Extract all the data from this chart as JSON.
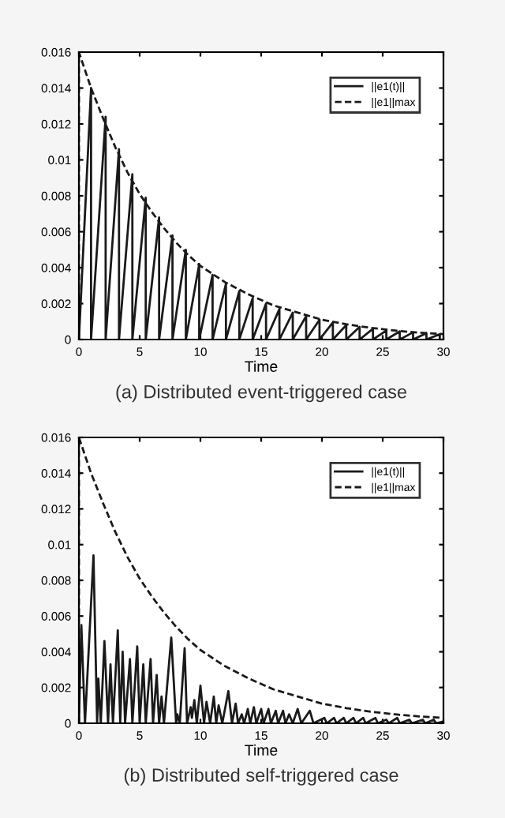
{
  "chart_data": [
    {
      "type": "line",
      "title": "(a) Distributed event-triggered case",
      "xlabel": "Time",
      "xlim": [
        0,
        30
      ],
      "ylim": [
        0,
        0.016
      ],
      "xticks": [
        0,
        5,
        10,
        15,
        20,
        25,
        30
      ],
      "yticks": [
        0,
        0.002,
        0.004,
        0.006,
        0.008,
        0.01,
        0.012,
        0.014,
        0.016
      ],
      "legend": "top right",
      "grid": false,
      "marker": "none",
      "series": [
        {
          "name": "||e1(t)||",
          "color": "#1a1a1a",
          "line_style": "solid",
          "x": [
            0,
            1.0,
            1.0,
            2.2,
            2.2,
            3.3,
            3.3,
            4.4,
            4.4,
            5.5,
            5.5,
            6.6,
            6.6,
            7.7,
            7.7,
            8.8,
            8.8,
            9.9,
            9.9,
            11.0,
            11.0,
            12.1,
            12.1,
            13.2,
            13.2,
            14.3,
            14.3,
            15.4,
            15.4,
            16.5,
            16.5,
            17.6,
            17.6,
            18.7,
            18.7,
            19.8,
            19.8,
            20.9,
            20.9,
            22.0,
            22.0,
            23.1,
            23.1,
            24.2,
            24.2,
            25.3,
            25.3,
            26.4,
            26.4,
            27.5,
            27.5,
            28.6,
            28.6,
            29.7,
            29.7
          ],
          "values": [
            0,
            0.014,
            0,
            0.0124,
            0,
            0.0106,
            0,
            0.0092,
            0,
            0.0079,
            0,
            0.0068,
            0,
            0.0058,
            0,
            0.005,
            0,
            0.0042,
            0,
            0.0036,
            0,
            0.0031,
            0,
            0.0027,
            0,
            0.0023,
            0,
            0.002,
            0,
            0.0017,
            0,
            0.0015,
            0,
            0.0013,
            0,
            0.0011,
            0,
            0.00095,
            0,
            0.0008,
            0,
            0.0007,
            0,
            0.0006,
            0,
            0.0005,
            0,
            0.00045,
            0,
            0.0004,
            0,
            0.00035,
            0,
            0.0003,
            0
          ]
        },
        {
          "name": "||e1||max",
          "color": "#1a1a1a",
          "line_style": "dashed",
          "x": [
            0,
            0,
            1,
            2,
            3,
            4,
            5,
            6,
            7,
            8,
            9,
            10,
            12,
            14,
            16,
            18,
            20,
            22,
            24,
            26,
            28,
            30
          ],
          "values": [
            0,
            0.016,
            0.014,
            0.0123,
            0.0107,
            0.0093,
            0.0081,
            0.0071,
            0.0062,
            0.0054,
            0.0047,
            0.0041,
            0.0032,
            0.0025,
            0.0019,
            0.0015,
            0.0011,
            0.00085,
            0.00065,
            0.0005,
            0.00038,
            0.0003
          ]
        }
      ]
    },
    {
      "type": "line",
      "title": "(b) Distributed self-triggered case",
      "xlabel": "Time",
      "xlim": [
        0,
        30
      ],
      "ylim": [
        0,
        0.016
      ],
      "xticks": [
        0,
        5,
        10,
        15,
        20,
        25,
        30
      ],
      "yticks": [
        0,
        0.002,
        0.004,
        0.006,
        0.008,
        0.01,
        0.012,
        0.014,
        0.016
      ],
      "legend": "top right",
      "grid": false,
      "marker": "none",
      "series": [
        {
          "name": "||e1(t)||",
          "color": "#1a1a1a",
          "line_style": "solid",
          "x": [
            0,
            0.2,
            0.5,
            1.2,
            1.5,
            1.6,
            1.8,
            2.1,
            2.4,
            2.6,
            2.8,
            3.2,
            3.4,
            3.6,
            3.8,
            4.2,
            4.4,
            4.8,
            5.0,
            5.3,
            5.5,
            5.9,
            6.1,
            6.4,
            6.6,
            6.8,
            7.0,
            7.6,
            8.0,
            8.1,
            8.3,
            8.7,
            8.9,
            9.2,
            9.3,
            9.5,
            9.7,
            10.0,
            10.3,
            10.5,
            10.8,
            11.1,
            11.3,
            11.5,
            11.8,
            12.3,
            12.6,
            12.9,
            13.1,
            13.4,
            13.6,
            13.9,
            14.1,
            14.4,
            14.6,
            15.0,
            15.2,
            15.6,
            15.8,
            16.2,
            16.4,
            16.8,
            17.0,
            17.3,
            17.6,
            18.0,
            18.3,
            19.0,
            19.3,
            20.2,
            20.4,
            21.0,
            21.2,
            21.8,
            22.0,
            22.6,
            22.8,
            23.4,
            23.6,
            24.4,
            24.6,
            25.3,
            25.5,
            26.2,
            26.4,
            27.2,
            27.4,
            28.3,
            28.5,
            29.2,
            29.4,
            30
          ],
          "values": [
            0,
            0.0055,
            0,
            0.0094,
            0,
            0.0025,
            0,
            0.0046,
            0,
            0.0033,
            0,
            0.0052,
            0,
            0.004,
            0,
            0.0036,
            0,
            0.0043,
            0,
            0.0033,
            0,
            0.0036,
            0,
            0.0027,
            0,
            0.0015,
            0,
            0.0048,
            0,
            0.0005,
            0,
            0.0042,
            0,
            0.0009,
            0.0003,
            0.0013,
            0,
            0.0021,
            0,
            0.0012,
            0,
            0.0015,
            0,
            0.001,
            0,
            0.0018,
            0,
            0.0011,
            0,
            0.0005,
            0,
            0.0008,
            0,
            0.0009,
            0,
            0.0008,
            0,
            0.0008,
            0,
            0.0007,
            0,
            0.0007,
            0,
            0.0005,
            0,
            0.0008,
            0,
            0.0007,
            0,
            0.0003,
            0,
            0.0003,
            0,
            0.0003,
            0,
            0.0003,
            0,
            0.0003,
            0,
            0.0003,
            0,
            0.0002,
            0,
            0.0003,
            0,
            0.0002,
            0,
            0.0002,
            0,
            0.0002,
            0,
            0.0001
          ]
        },
        {
          "name": "||e1||max",
          "color": "#1a1a1a",
          "line_style": "dashed",
          "x": [
            0,
            0,
            1,
            2,
            3,
            4,
            5,
            6,
            7,
            8,
            9,
            10,
            12,
            14,
            16,
            18,
            20,
            22,
            24,
            26,
            28,
            30
          ],
          "values": [
            0,
            0.016,
            0.014,
            0.0123,
            0.0107,
            0.0093,
            0.0081,
            0.0071,
            0.0062,
            0.0054,
            0.0047,
            0.0041,
            0.0032,
            0.0025,
            0.0019,
            0.0015,
            0.0011,
            0.00085,
            0.00065,
            0.0005,
            0.00038,
            0.0003
          ]
        }
      ]
    }
  ]
}
